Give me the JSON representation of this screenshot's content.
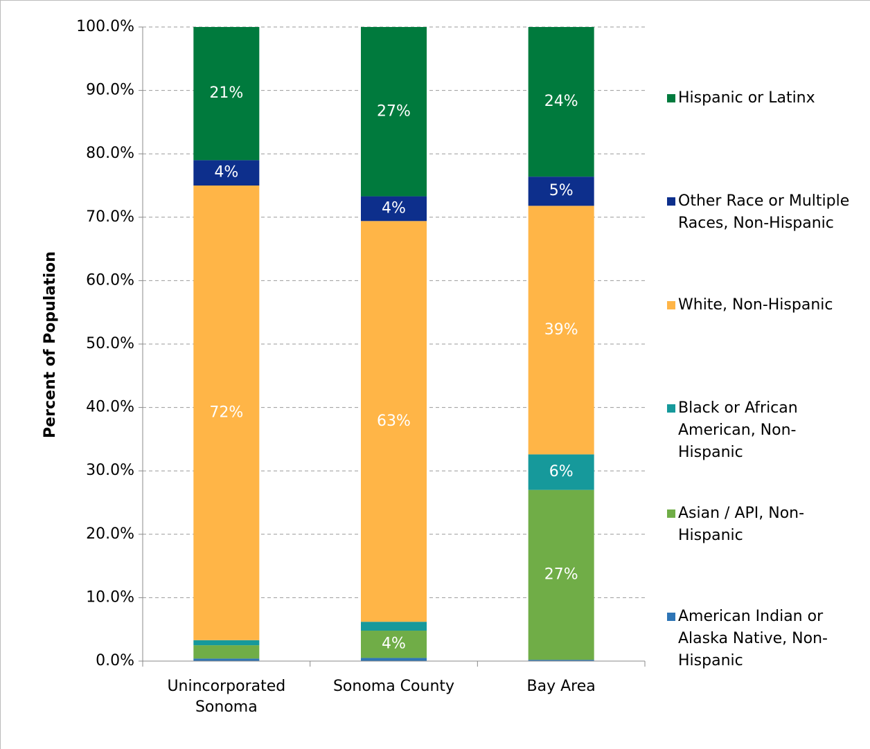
{
  "chart_data": {
    "type": "stacked_bar",
    "y_label": "Percent of Population",
    "categories": [
      "Unincorporated Sonoma",
      "Sonoma County",
      "Bay Area"
    ],
    "series": [
      {
        "name": "American Indian or Alaska Native, Non-Hispanic",
        "color": "#2e75b6",
        "values": [
          0.4,
          0.5,
          0.2
        ],
        "value_labels": [
          null,
          null,
          null
        ]
      },
      {
        "name": "Asian / API, Non-Hispanic",
        "color": "#70ad47",
        "values": [
          2.1,
          4.3,
          26.8
        ],
        "value_labels": [
          null,
          "4%",
          "27%"
        ]
      },
      {
        "name": "Black or African American, Non-Hispanic",
        "color": "#16999b",
        "values": [
          0.8,
          1.4,
          5.6
        ],
        "value_labels": [
          null,
          null,
          "6%"
        ]
      },
      {
        "name": "White, Non-Hispanic",
        "color": "#ffb547",
        "values": [
          71.7,
          63.2,
          39.2
        ],
        "value_labels": [
          "72%",
          "63%",
          "39%"
        ]
      },
      {
        "name": "Other Race or Multiple Races, Non-Hispanic",
        "color": "#0d2f8c",
        "values": [
          4.0,
          3.9,
          4.6
        ],
        "value_labels": [
          "4%",
          "4%",
          "5%"
        ]
      },
      {
        "name": "Hispanic or Latinx",
        "color": "#007a3d",
        "values": [
          21.0,
          26.7,
          23.6
        ],
        "value_labels": [
          "21%",
          "27%",
          "24%"
        ]
      }
    ],
    "ylim": [
      0,
      100
    ],
    "yticks": [
      {
        "value": 0,
        "label": "0.0%"
      },
      {
        "value": 10,
        "label": "10.0%"
      },
      {
        "value": 20,
        "label": "20.0%"
      },
      {
        "value": 30,
        "label": "30.0%"
      },
      {
        "value": 40,
        "label": "40.0%"
      },
      {
        "value": 50,
        "label": "50.0%"
      },
      {
        "value": 60,
        "label": "60.0%"
      },
      {
        "value": 70,
        "label": "70.0%"
      },
      {
        "value": 80,
        "label": "80.0%"
      },
      {
        "value": 90,
        "label": "90.0%"
      },
      {
        "value": 100,
        "label": "100.0%"
      }
    ],
    "grid": true,
    "legend": "right"
  }
}
